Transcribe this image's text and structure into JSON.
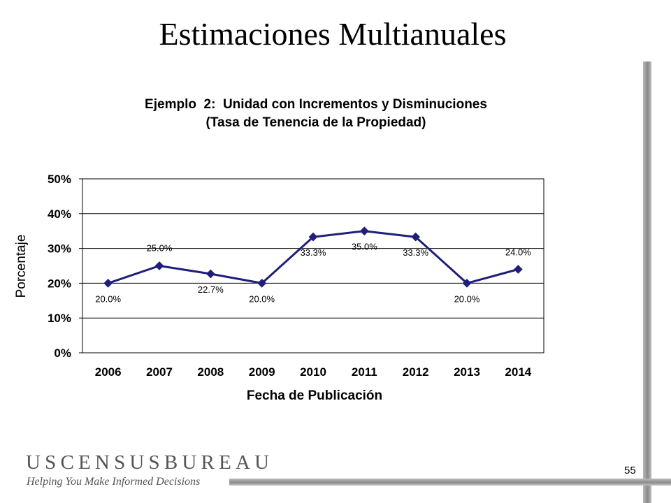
{
  "slide": {
    "title": "Estimaciones Multianuales",
    "page_number": "55",
    "logo_text": "USCENSUSBUREAU",
    "logo_tagline": "Helping You Make Informed Decisions"
  },
  "chart_data": {
    "type": "line",
    "title": "Ejemplo  2:  Unidad con Incrementos y Disminuciones",
    "subtitle": "(Tasa de Tenencia de la Propiedad)",
    "xlabel": "Fecha de Publicación",
    "ylabel": "Porcentaje",
    "categories": [
      "2006",
      "2007",
      "2008",
      "2009",
      "2010",
      "2011",
      "2012",
      "2013",
      "2014"
    ],
    "series": [
      {
        "values": [
          20.0,
          25.0,
          22.7,
          20.0,
          33.3,
          35.0,
          33.3,
          20.0,
          24.0
        ],
        "data_labels": [
          "20.0%",
          "25.0%",
          "22.7%",
          "20.0%",
          "33.3%",
          "35.0%",
          "33.3%",
          "20.0%",
          "24.0%"
        ],
        "color": "#1f1f7a"
      }
    ],
    "ylim": [
      0,
      50
    ],
    "yticks": [
      0,
      10,
      20,
      30,
      40,
      50
    ],
    "ytick_labels": [
      "0%",
      "10%",
      "20%",
      "30%",
      "40%",
      "50%"
    ],
    "grid": true,
    "legend": "none"
  }
}
